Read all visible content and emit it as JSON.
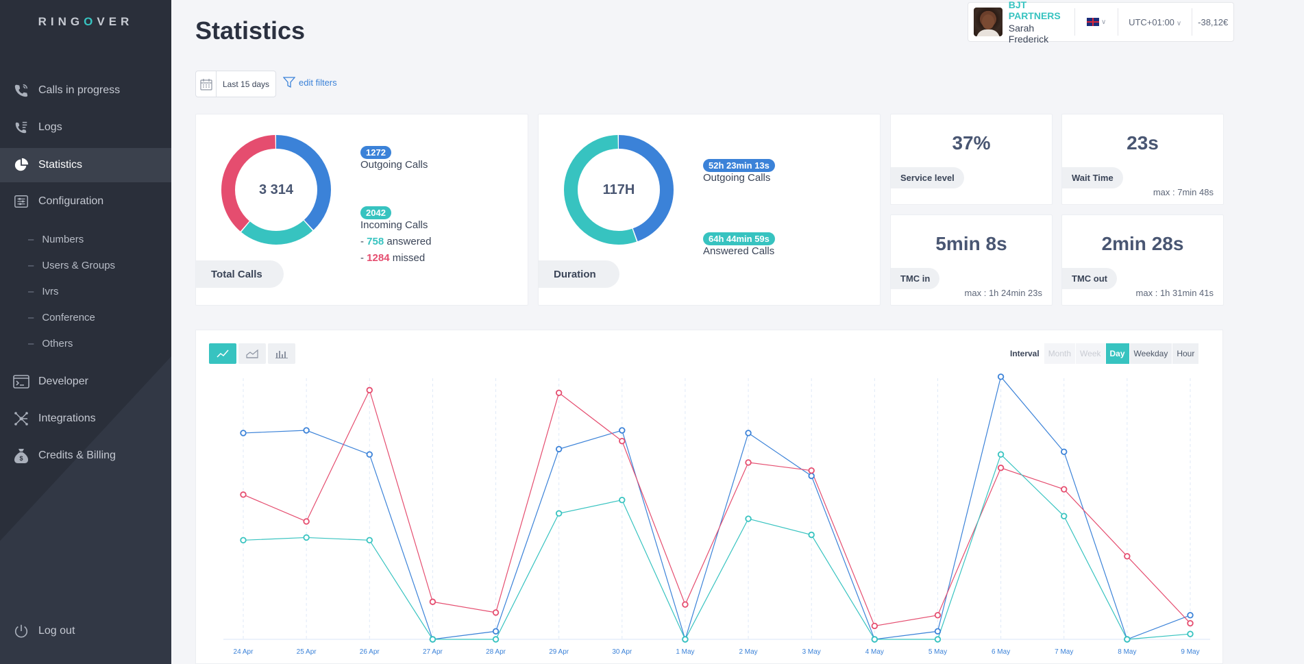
{
  "app": {
    "logo_left": "RING",
    "logo_o": "O",
    "logo_right": "VER"
  },
  "sidebar": {
    "items": [
      {
        "label": "Calls in progress",
        "icon": "phone-icon"
      },
      {
        "label": "Logs",
        "icon": "call-log-icon"
      },
      {
        "label": "Statistics",
        "icon": "pie-chart-icon",
        "active": true
      },
      {
        "label": "Configuration",
        "icon": "sliders-icon"
      }
    ],
    "sub_items": [
      "Numbers",
      "Users & Groups",
      "Ivrs",
      "Conference",
      "Others"
    ],
    "sub_dash": "–",
    "lower_items": [
      {
        "label": "Developer",
        "icon": "terminal-icon"
      },
      {
        "label": "Integrations",
        "icon": "network-icon"
      },
      {
        "label": "Credits & Billing",
        "icon": "money-bag-icon"
      }
    ],
    "logout": "Log out"
  },
  "header": {
    "title": "Statistics",
    "date_filter": "Last 15 days",
    "edit_filters": "edit filters",
    "company": "BJT PARTNERS",
    "user": "Sarah Frederick",
    "timezone": "UTC+01:00",
    "balance": "-38,12€"
  },
  "total_calls": {
    "value": "3 314",
    "label": "Total Calls",
    "outgoing_count": "1272",
    "outgoing_label": "Outgoing Calls",
    "incoming_count": "2042",
    "incoming_label": "Incoming Calls",
    "answered_prefix": "- ",
    "answered_value": "758",
    "answered_label": " answered",
    "missed_prefix": "- ",
    "missed_value": "1284",
    "missed_label": " missed",
    "donut": [
      {
        "name": "Outgoing",
        "fraction": 0.384,
        "color": "#3b82d8"
      },
      {
        "name": "Answered",
        "fraction": 0.229,
        "color": "#37c3c0"
      },
      {
        "name": "Missed",
        "fraction": 0.387,
        "color": "#e54d6f"
      }
    ]
  },
  "duration": {
    "value": "117H",
    "label": "Duration",
    "outgoing_value": "52h 23min 13s",
    "outgoing_label": "Outgoing Calls",
    "answered_value": "64h 44min 59s",
    "answered_label": "Answered Calls",
    "donut": [
      {
        "name": "Outgoing",
        "fraction": 0.447,
        "color": "#3b82d8"
      },
      {
        "name": "Answered",
        "fraction": 0.553,
        "color": "#37c3c0"
      }
    ]
  },
  "kpis": [
    {
      "value": "37%",
      "label": "Service level",
      "max": ""
    },
    {
      "value": "23s",
      "label": "Wait Time",
      "max": "max : 7min 48s"
    },
    {
      "value": "5min 8s",
      "label": "TMC in",
      "max": "max : 1h 24min 23s"
    },
    {
      "value": "2min 28s",
      "label": "TMC out",
      "max": "max : 1h 31min 41s"
    }
  ],
  "chart_controls": {
    "types": [
      "line-chart-icon",
      "area-chart-icon",
      "bar-chart-icon"
    ],
    "interval_label": "Interval",
    "intervals": [
      {
        "label": "Month",
        "state": "disabled"
      },
      {
        "label": "Week",
        "state": "disabled"
      },
      {
        "label": "Day",
        "state": "selected"
      },
      {
        "label": "Weekday",
        "state": "enabled"
      },
      {
        "label": "Hour",
        "state": "enabled"
      }
    ]
  },
  "chart_data": {
    "type": "line",
    "x": [
      "24 Apr",
      "25 Apr",
      "26 Apr",
      "27 Apr",
      "28 Apr",
      "29 Apr",
      "30 Apr",
      "1 May",
      "2 May",
      "3 May",
      "4 May",
      "5 May",
      "6 May",
      "7 May",
      "8 May",
      "9 May"
    ],
    "ylim": [
      0,
      100
    ],
    "grid": "vertical dashed",
    "series": [
      {
        "color": "#3b82d8",
        "values": [
          77,
          78,
          69,
          0,
          3,
          71,
          78,
          0,
          77,
          61,
          0,
          3,
          98,
          70,
          0,
          9
        ]
      },
      {
        "color": "#e54d6f",
        "values": [
          54,
          44,
          93,
          14,
          10,
          92,
          74,
          13,
          66,
          63,
          5,
          9,
          64,
          56,
          31,
          6
        ]
      },
      {
        "color": "#37c3c0",
        "values": [
          37,
          38,
          37,
          0,
          0,
          47,
          52,
          0,
          45,
          39,
          0,
          0,
          69,
          46,
          0,
          2
        ]
      }
    ]
  }
}
